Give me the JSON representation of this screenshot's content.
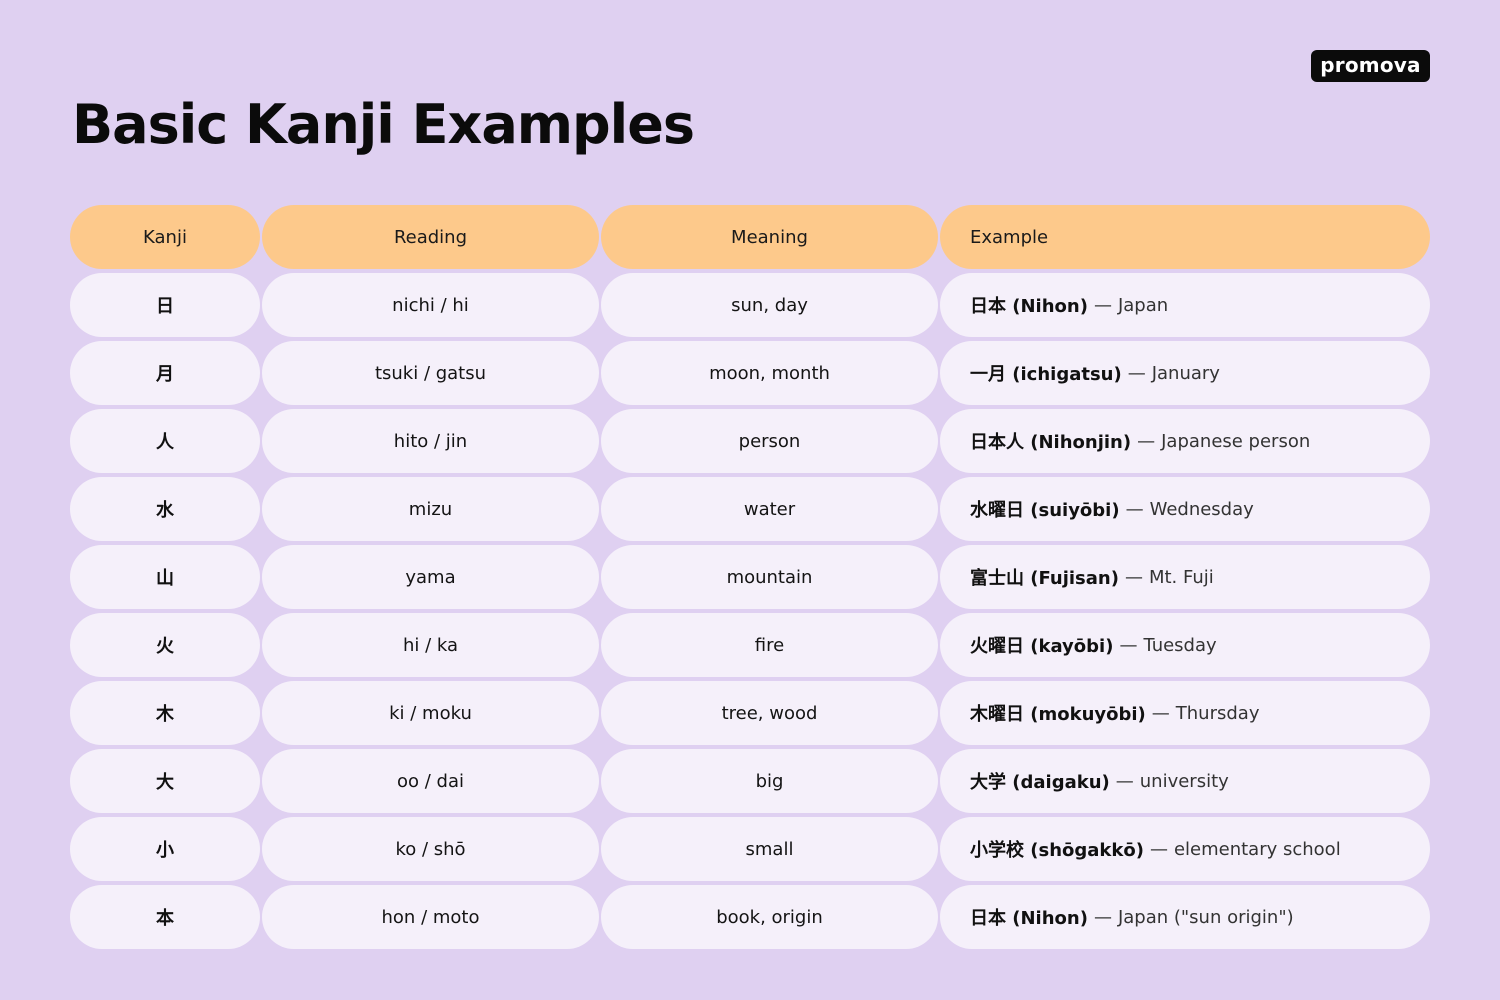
{
  "title": "Basic Kanji Examples",
  "logo": "promova",
  "colors": {
    "background": "#dfd0f1",
    "header": "#fdc98b",
    "row": "#f5f0fa",
    "logo_bg": "#0b0b0b"
  },
  "table": {
    "headers": {
      "kanji": "Kanji",
      "reading": "Reading",
      "meaning": "Meaning",
      "example": "Example"
    },
    "rows": [
      {
        "kanji": "日",
        "reading": "nichi / hi",
        "meaning": "sun, day",
        "example": "日本 (Nihon)",
        "dash": "—",
        "gloss": "Japan"
      },
      {
        "kanji": "月",
        "reading": "tsuki / gatsu",
        "meaning": "moon, month",
        "example": "一月 (ichigatsu)",
        "dash": "—",
        "gloss": "January"
      },
      {
        "kanji": "人",
        "reading": "hito / jin",
        "meaning": "person",
        "example": "日本人 (Nihonjin)",
        "dash": "—",
        "gloss": "Japanese person"
      },
      {
        "kanji": "水",
        "reading": "mizu",
        "meaning": "water",
        "example": "水曜日 (suiyōbi)",
        "dash": "—",
        "gloss": "Wednesday"
      },
      {
        "kanji": "山",
        "reading": "yama",
        "meaning": "mountain",
        "example": "富士山 (Fujisan)",
        "dash": "—",
        "gloss": "Mt. Fuji"
      },
      {
        "kanji": "火",
        "reading": "hi / ka",
        "meaning": "fire",
        "example": "火曜日 (kayōbi)",
        "dash": "—",
        "gloss": "Tuesday"
      },
      {
        "kanji": "木",
        "reading": "ki / moku",
        "meaning": "tree, wood",
        "example": "木曜日 (mokuyōbi)",
        "dash": "—",
        "gloss": "Thursday"
      },
      {
        "kanji": "大",
        "reading": "oo / dai",
        "meaning": "big",
        "example": "大学 (daigaku)",
        "dash": "—",
        "gloss": "university"
      },
      {
        "kanji": "小",
        "reading": "ko / shō",
        "meaning": "small",
        "example": "小学校 (shōgakkō)",
        "dash": "—",
        "gloss": "elementary school"
      },
      {
        "kanji": "本",
        "reading": "hon / moto",
        "meaning": "book, origin",
        "example": "日本 (Nihon)",
        "dash": "—",
        "gloss": "Japan (\"sun origin\")"
      }
    ]
  }
}
